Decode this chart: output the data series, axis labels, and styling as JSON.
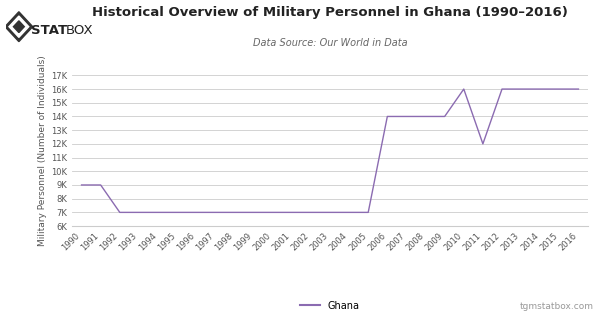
{
  "years": [
    1990,
    1991,
    1992,
    1993,
    1994,
    1995,
    1996,
    1997,
    1998,
    1999,
    2000,
    2001,
    2002,
    2003,
    2004,
    2005,
    2006,
    2007,
    2008,
    2009,
    2010,
    2011,
    2012,
    2013,
    2014,
    2015,
    2016
  ],
  "values": [
    9000,
    9000,
    7000,
    7000,
    7000,
    7000,
    7000,
    7000,
    7000,
    7000,
    7000,
    7000,
    7000,
    7000,
    7000,
    7000,
    14000,
    14000,
    14000,
    14000,
    16000,
    12000,
    16000,
    16000,
    16000,
    16000,
    16000
  ],
  "line_color": "#8B6BB1",
  "title": "Historical Overview of Military Personnel in Ghana (1990–2016)",
  "subtitle": "Data Source: Our World in Data",
  "ylabel": "Military Personnel (Number of Individuals)",
  "ylim": [
    6000,
    17000
  ],
  "yticks": [
    6000,
    7000,
    8000,
    9000,
    10000,
    11000,
    12000,
    13000,
    14000,
    15000,
    16000,
    17000
  ],
  "legend_label": "Ghana",
  "watermark": "tgmstatbox.com",
  "bg_color": "#ffffff",
  "grid_color": "#cccccc",
  "title_fontsize": 9.5,
  "subtitle_fontsize": 7,
  "ylabel_fontsize": 6.5,
  "tick_fontsize": 6,
  "legend_fontsize": 7
}
